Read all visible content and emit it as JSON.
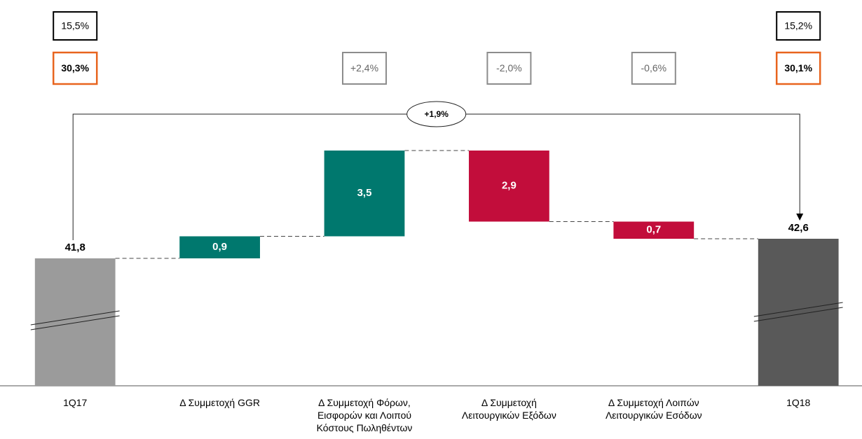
{
  "chart_data": {
    "type": "waterfall",
    "categories": [
      "1Q17",
      "Δ Συμμετοχή GGR",
      "Δ Συμμετοχή Φόρων,\nΕισφορών και Λοιπού\nΚόστους Πωληθέντων",
      "Δ Συμμετοχή\nΛειτουργικών Εξόδων",
      "Δ Συμμετοχή Λοιπών\nΛειτουργικών Εσόδων",
      "1Q18"
    ],
    "values": [
      41.8,
      0.9,
      3.5,
      -2.9,
      -0.7,
      42.6
    ],
    "value_labels": [
      "41,8",
      "0,9",
      "3,5",
      "2,9",
      "0,7",
      "42,6"
    ],
    "measure": [
      "total",
      "relative",
      "relative",
      "relative",
      "relative",
      "total"
    ],
    "colors": [
      "#9b9b9b",
      "#00786e",
      "#00786e",
      "#c20d3b",
      "#c20d3b",
      "#595959"
    ],
    "ylim": [
      36.6,
      47.4
    ],
    "annotations": [
      {
        "category": 0,
        "row": 0,
        "label": "15,5%",
        "color": "#000000",
        "bold": false
      },
      {
        "category": 5,
        "row": 0,
        "label": "15,2%",
        "color": "#000000",
        "bold": false
      },
      {
        "category": 0,
        "row": 1,
        "label": "30,3%",
        "color": "#e8641e",
        "bold": true
      },
      {
        "category": 2,
        "row": 1,
        "label": "+2,4%",
        "color": "#8c8c8c",
        "bold": false
      },
      {
        "category": 3,
        "row": 1,
        "label": "-2,0%",
        "color": "#8c8c8c",
        "bold": false
      },
      {
        "category": 4,
        "row": 1,
        "label": "-0,6%",
        "color": "#8c8c8c",
        "bold": false
      },
      {
        "category": 5,
        "row": 1,
        "label": "30,1%",
        "color": "#e8641e",
        "bold": true
      }
    ],
    "bracket_label": "+1,9%"
  }
}
